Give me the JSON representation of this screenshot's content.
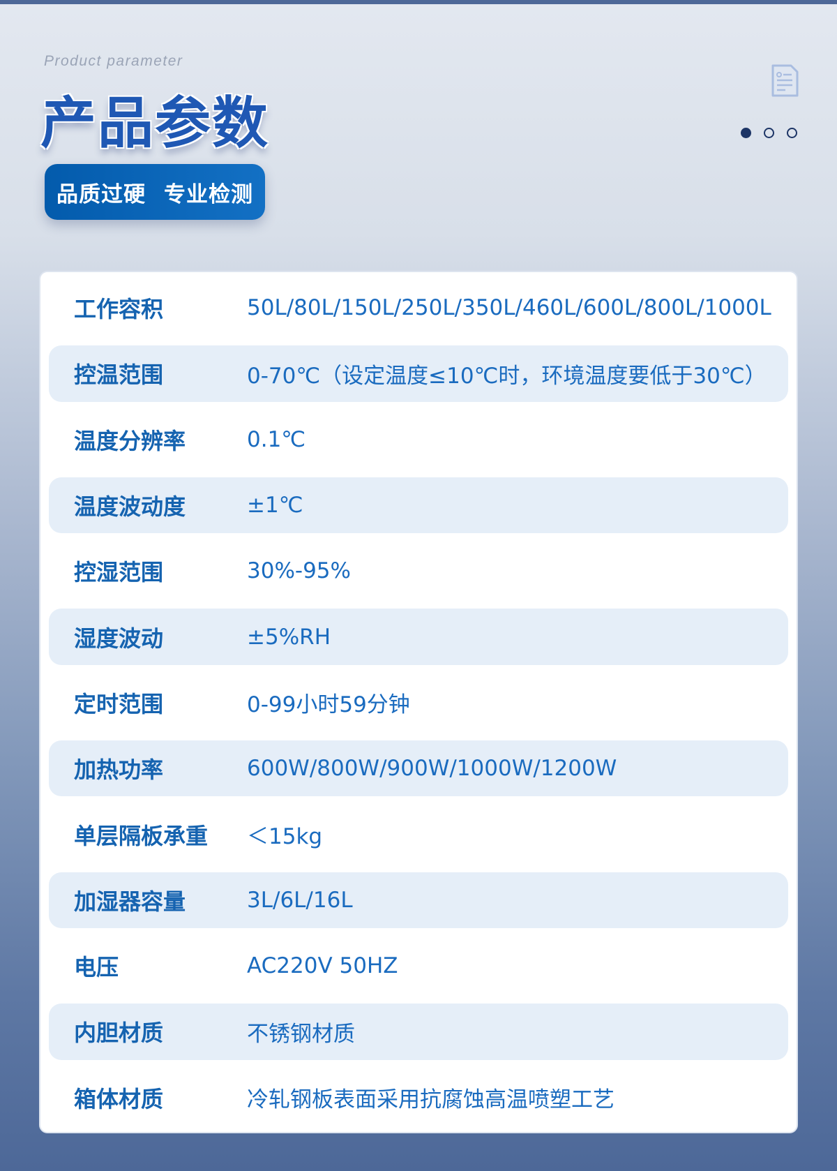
{
  "header": {
    "subtitle": "Product parameter",
    "title": "产品参数",
    "badge": [
      "品质过硬",
      "专业检测"
    ],
    "icon": "document-icon",
    "pager": {
      "count": 3,
      "active": 0
    }
  },
  "params": [
    {
      "label": "工作容积",
      "value": "50L/80L/150L/250L/350L/460L/600L/800L/1000L"
    },
    {
      "label": "控温范围",
      "value": "0-70℃（设定温度≤10℃时，环境温度要低于30℃）"
    },
    {
      "label": "温度分辨率",
      "value": "0.1℃"
    },
    {
      "label": "温度波动度",
      "value": "±1℃"
    },
    {
      "label": "控湿范围",
      "value": "30%-95%"
    },
    {
      "label": "湿度波动",
      "value": "±5%RH"
    },
    {
      "label": "定时范围",
      "value": "0-99小时59分钟"
    },
    {
      "label": "加热功率",
      "value": "600W/800W/900W/1000W/1200W"
    },
    {
      "label": "单层隔板承重",
      "value": "＜15kg"
    },
    {
      "label": "加湿器容量",
      "value": "3L/6L/16L"
    },
    {
      "label": "电压",
      "value": "AC220V 50HZ"
    },
    {
      "label": "内胆材质",
      "value": "不锈钢材质"
    },
    {
      "label": "箱体材质",
      "value": "冷轧钢板表面采用抗腐蚀高温喷塑工艺"
    }
  ],
  "colors": {
    "accent": "#1563b0",
    "stripe": "#e5eef8",
    "badge": "#035bac"
  }
}
